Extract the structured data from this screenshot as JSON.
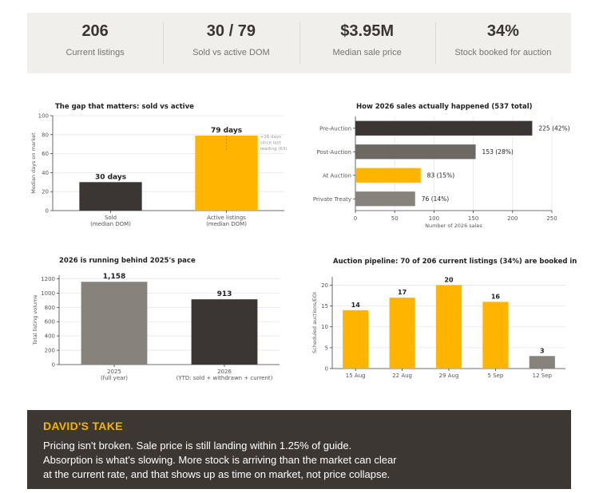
{
  "kpis": [
    {
      "value": "206",
      "label": "Current listings"
    },
    {
      "value": "30 / 79",
      "label": "Sold vs active DOM"
    },
    {
      "value": "$3.95M",
      "label": "Median sale price"
    },
    {
      "value": "34%",
      "label": "Stock booked for auction"
    }
  ],
  "colors": {
    "dark": "#3b3633",
    "yellow": "#ffb400",
    "gray": "#88827d",
    "mid": "#6e6863"
  },
  "chart_data": [
    {
      "type": "bar",
      "title": "The gap that matters: sold vs active",
      "ylabel": "Median days on market",
      "ylim": [
        0,
        100
      ],
      "yticks": [
        "0",
        "20",
        "40",
        "60",
        "80",
        "100"
      ],
      "categories": [
        "Sold",
        "Active listings"
      ],
      "category_sublabels": [
        "(median DOM)",
        "(median DOM)"
      ],
      "values": [
        30,
        79
      ],
      "value_labels": [
        "30 days",
        "79 days"
      ],
      "bar_colors": [
        "dark",
        "yellow"
      ],
      "annotation": {
        "lines": [
          "+16 days",
          "since last",
          "reading (63)"
        ],
        "from": 63,
        "to": 79
      }
    },
    {
      "type": "bar",
      "orientation": "horizontal",
      "title": "How 2026 sales actually happened (537 total)",
      "xlabel": "Number of 2026 sales",
      "xlim": [
        0,
        250
      ],
      "xticks": [
        "0",
        "50",
        "100",
        "150",
        "200",
        "250"
      ],
      "categories": [
        "Pre-Auction",
        "Post-Auction",
        "At Auction",
        "Private Treaty"
      ],
      "values": [
        225,
        153,
        83,
        76
      ],
      "value_labels": [
        "225  (42%)",
        "153  (28%)",
        "83  (15%)",
        "76  (14%)"
      ],
      "bar_colors": [
        "dark",
        "mid",
        "yellow",
        "gray"
      ]
    },
    {
      "type": "bar",
      "title": "2026 is running behind 2025's pace",
      "ylabel": "Total listing volume",
      "ylim": [
        0,
        1250
      ],
      "yticks": [
        "0",
        "200",
        "400",
        "600",
        "800",
        "1000",
        "1200"
      ],
      "categories": [
        "2025",
        "2026"
      ],
      "category_sublabels": [
        "(full year)",
        "(YTD: sold + withdrawn + current)"
      ],
      "values": [
        1158,
        913
      ],
      "value_labels": [
        "1,158",
        "913"
      ],
      "bar_colors": [
        "gray",
        "dark"
      ]
    },
    {
      "type": "bar",
      "title": "Auction pipeline: 70 of 206 current listings (34%) are booked in",
      "ylabel": "Scheduled auctions/EOI",
      "ylim": [
        0,
        22
      ],
      "yticks": [
        "0",
        "5",
        "10",
        "15",
        "20"
      ],
      "categories": [
        "15 Aug",
        "22 Aug",
        "29 Aug",
        "5 Sep",
        "12 Sep"
      ],
      "values": [
        14,
        17,
        20,
        16,
        3
      ],
      "value_labels": [
        "14",
        "17",
        "20",
        "16",
        "3"
      ],
      "bar_colors": [
        "yellow",
        "yellow",
        "yellow",
        "yellow",
        "gray"
      ]
    }
  ],
  "take": {
    "title": "DAVID'S TAKE",
    "lines": [
      "Pricing isn't broken. Sale price is still landing within 1.25% of guide.",
      "Absorption is what's slowing. More stock is arriving than the market can clear",
      "at the current rate, and that shows up as time on market, not price collapse."
    ]
  }
}
